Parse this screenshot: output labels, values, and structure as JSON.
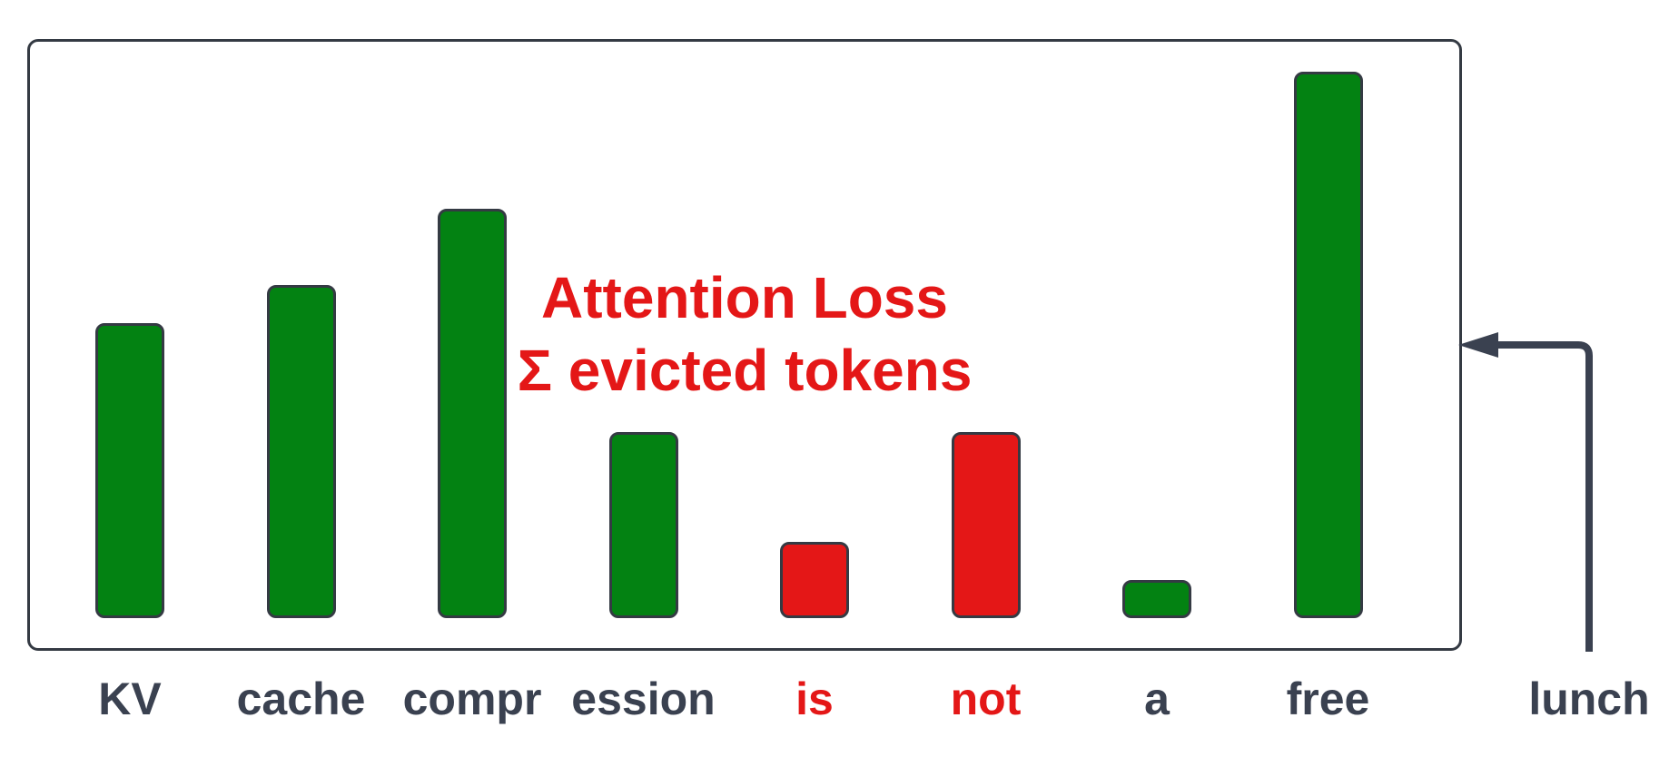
{
  "chart_data": {
    "type": "bar",
    "tokens": [
      "KV",
      "cache",
      "compr",
      "ession",
      "is",
      "not",
      "a",
      "free"
    ],
    "values": [
      0.54,
      0.61,
      0.75,
      0.34,
      0.14,
      0.34,
      0.07,
      1.0
    ],
    "evicted": [
      false,
      false,
      false,
      false,
      true,
      true,
      false,
      false
    ],
    "ylim": [
      0,
      1
    ]
  },
  "query_token": "lunch",
  "annotation": {
    "line1": "Attention Loss",
    "line2": "Σ evicted tokens"
  },
  "colors": {
    "kept": "#038212",
    "evicted": "#e41717",
    "outline": "#343a43",
    "label": "#3a4150"
  }
}
